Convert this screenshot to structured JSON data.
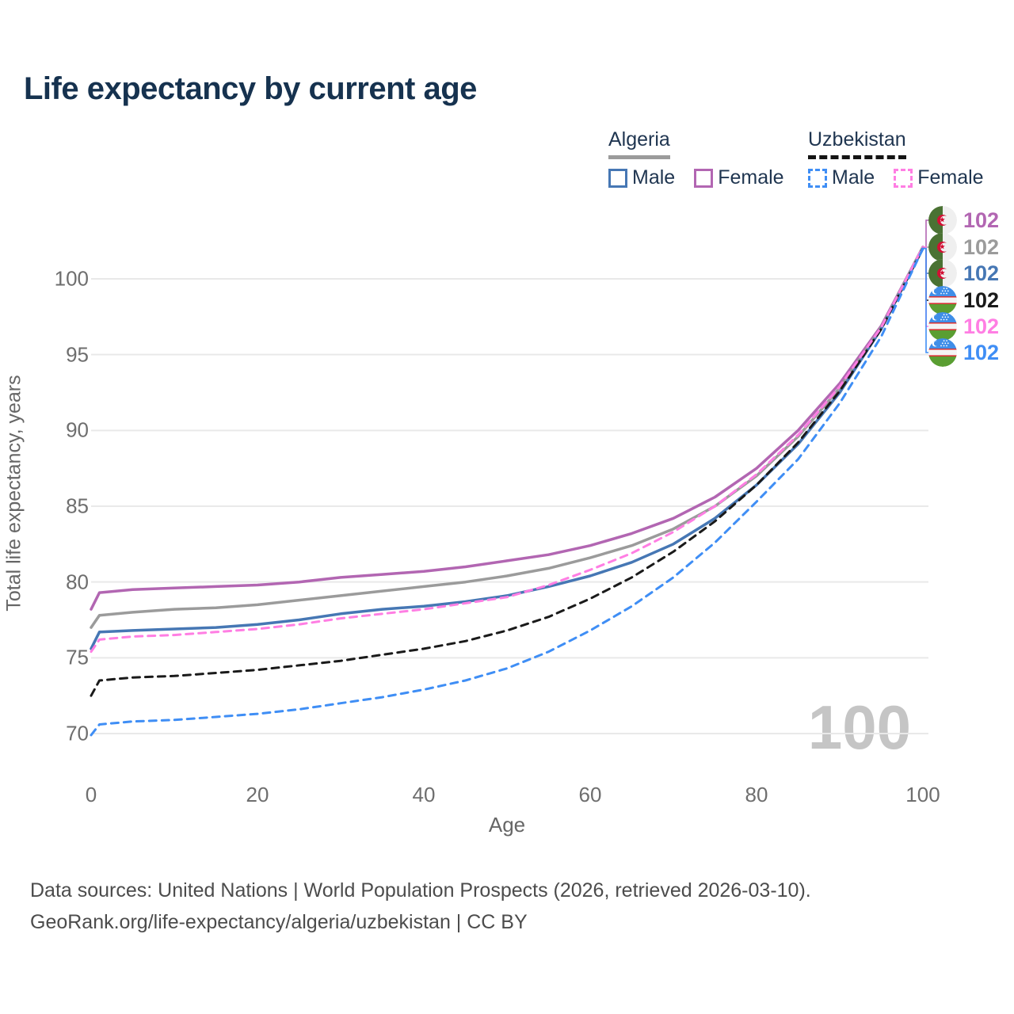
{
  "title": "Life expectancy by current age",
  "legend": {
    "groups": [
      {
        "country": "Algeria",
        "line_style": "solid",
        "underline_color": "#9b9b9b",
        "items": [
          {
            "label": "Male",
            "color": "#4677b4",
            "dashed": false
          },
          {
            "label": "Female",
            "color": "#b266b2",
            "dashed": false
          }
        ]
      },
      {
        "country": "Uzbekistan",
        "line_style": "dashed",
        "underline_color": "#141414",
        "items": [
          {
            "label": "Male",
            "color": "#3f8ef5",
            "dashed": true
          },
          {
            "label": "Female",
            "color": "#ff7ee3",
            "dashed": true
          }
        ]
      }
    ]
  },
  "watermark": "100",
  "footer": {
    "line1": "Data sources: United Nations | World Population Prospects (2026, retrieved 2026-03-10).",
    "line2": "GeoRank.org/life-expectancy/algeria/uzbekistan | CC BY"
  },
  "chart_data": {
    "type": "line",
    "title": "Life expectancy by current age",
    "xlabel": "Age",
    "ylabel": "Total life expectancy, years",
    "xlim": [
      0,
      100
    ],
    "ylim": [
      68.5,
      103
    ],
    "x_ticks": [
      0,
      20,
      40,
      60,
      80,
      100
    ],
    "y_ticks": [
      70,
      75,
      80,
      85,
      90,
      95,
      100
    ],
    "grid": true,
    "legend_position": "top-right",
    "x": [
      0,
      1,
      5,
      10,
      15,
      20,
      25,
      30,
      35,
      40,
      45,
      50,
      55,
      60,
      65,
      70,
      75,
      80,
      85,
      90,
      95,
      100
    ],
    "series": [
      {
        "name": "Algeria Female",
        "country": "Algeria",
        "sex": "Female",
        "color": "#b266b2",
        "dash": "solid",
        "end_label": "102",
        "flag": "algeria",
        "values": [
          78.2,
          79.3,
          79.5,
          79.6,
          79.7,
          79.8,
          80.0,
          80.3,
          80.5,
          80.7,
          81.0,
          81.4,
          81.8,
          82.4,
          83.2,
          84.2,
          85.6,
          87.5,
          90.0,
          93.1,
          96.9,
          102.1
        ]
      },
      {
        "name": "Algeria Total",
        "country": "Algeria",
        "sex": "Both",
        "color": "#9b9b9b",
        "dash": "solid",
        "end_label": "102",
        "flag": "algeria",
        "values": [
          77.0,
          77.8,
          78.0,
          78.2,
          78.3,
          78.5,
          78.8,
          79.1,
          79.4,
          79.7,
          80.0,
          80.4,
          80.9,
          81.6,
          82.4,
          83.5,
          85.0,
          87.0,
          89.6,
          92.8,
          96.8,
          102.1
        ]
      },
      {
        "name": "Algeria Male",
        "country": "Algeria",
        "sex": "Male",
        "color": "#4677b4",
        "dash": "solid",
        "end_label": "102",
        "flag": "algeria",
        "values": [
          75.6,
          76.7,
          76.8,
          76.9,
          77.0,
          77.2,
          77.5,
          77.9,
          78.2,
          78.4,
          78.7,
          79.1,
          79.7,
          80.4,
          81.3,
          82.5,
          84.2,
          86.4,
          89.1,
          92.5,
          96.7,
          102.0
        ]
      },
      {
        "name": "Uzbekistan Total",
        "country": "Uzbekistan",
        "sex": "Both",
        "color": "#1a1a1a",
        "dash": "dashed",
        "end_label": "102",
        "flag": "uzbekistan",
        "values": [
          72.5,
          73.5,
          73.7,
          73.8,
          74.0,
          74.2,
          74.5,
          74.8,
          75.2,
          75.6,
          76.1,
          76.8,
          77.7,
          78.9,
          80.3,
          82.0,
          84.0,
          86.4,
          89.2,
          92.6,
          96.7,
          102.0
        ]
      },
      {
        "name": "Uzbekistan Female",
        "country": "Uzbekistan",
        "sex": "Female",
        "color": "#ff7ee3",
        "dash": "dashed",
        "end_label": "102",
        "flag": "uzbekistan",
        "values": [
          75.4,
          76.2,
          76.4,
          76.5,
          76.7,
          76.9,
          77.2,
          77.6,
          77.9,
          78.2,
          78.6,
          79.0,
          79.8,
          80.8,
          81.9,
          83.3,
          85.0,
          87.1,
          89.7,
          92.9,
          96.8,
          102.1
        ]
      },
      {
        "name": "Uzbekistan Male",
        "country": "Uzbekistan",
        "sex": "Male",
        "color": "#3f8ef5",
        "dash": "dashed",
        "end_label": "102",
        "flag": "uzbekistan",
        "values": [
          69.9,
          70.6,
          70.8,
          70.9,
          71.1,
          71.3,
          71.6,
          72.0,
          72.4,
          72.9,
          73.5,
          74.3,
          75.4,
          76.8,
          78.4,
          80.3,
          82.6,
          85.3,
          88.1,
          91.8,
          96.2,
          102.0
        ]
      }
    ],
    "end_label_order_note": "top to bottom: Algeria Female, Algeria Total, Algeria Male, Uzbekistan Total, Uzbekistan Female, Uzbekistan Male"
  }
}
